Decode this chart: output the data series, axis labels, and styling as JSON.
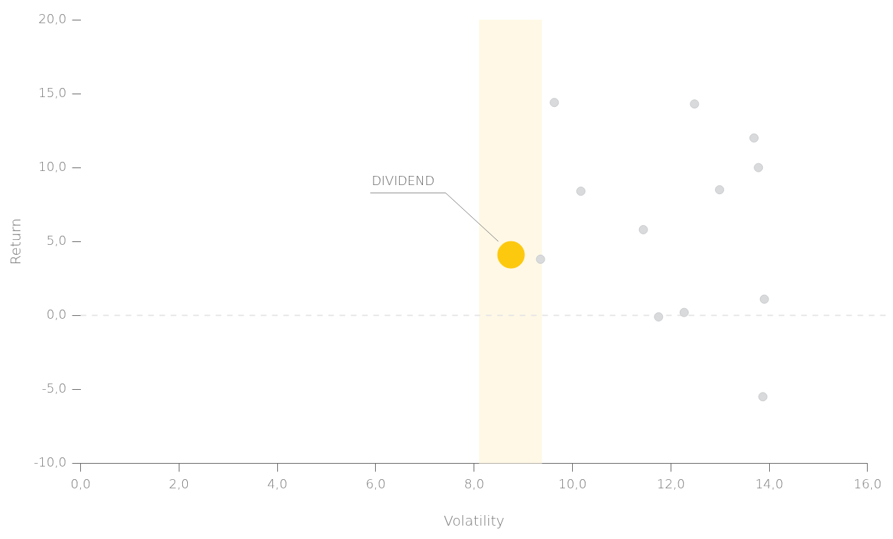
{
  "chart_data": {
    "type": "scatter",
    "xlabel": "Volatility",
    "ylabel": "Return",
    "xlim": [
      0,
      16
    ],
    "xticks": [
      {
        "value": 0,
        "label": "0,0"
      },
      {
        "value": 2,
        "label": "2,0"
      },
      {
        "value": 4,
        "label": "4,0"
      },
      {
        "value": 6,
        "label": "6,0"
      },
      {
        "value": 8,
        "label": "8,0"
      },
      {
        "value": 10,
        "label": "10,0"
      },
      {
        "value": 12,
        "label": "12,0"
      },
      {
        "value": 14,
        "label": "14,0"
      },
      {
        "value": 16,
        "label": "16,0"
      }
    ],
    "ylim": [
      -10,
      20
    ],
    "yticks": [
      {
        "value": -10,
        "label": "-10,0"
      },
      {
        "value": -5,
        "label": "-5,0"
      },
      {
        "value": 0,
        "label": "0,0"
      },
      {
        "value": 5,
        "label": "5,0"
      },
      {
        "value": 10,
        "label": "10,0"
      },
      {
        "value": 15,
        "label": "15,0"
      },
      {
        "value": 20,
        "label": "20,0"
      }
    ],
    "grid": false,
    "legend": false,
    "marker": "circle",
    "series": [
      {
        "color": "#d9dadc",
        "x": [
          9.63,
          12.48,
          13.69,
          13.78,
          10.17,
          12.99,
          11.44,
          9.35,
          13.9,
          12.27,
          11.75,
          13.87
        ],
        "values": [
          14.4,
          14.3,
          12,
          10,
          8.4,
          8.5,
          5.8,
          3.8,
          1.1,
          0.2,
          -0.1,
          -5.5
        ]
      },
      {
        "color": "#fdc90f",
        "x": [
          8.75
        ],
        "values": [
          4.1
        ]
      }
    ],
    "ref_lines": [
      {
        "axis": "y",
        "value": 0,
        "color": "#e6e6e6",
        "line_style": "dashed"
      }
    ],
    "bands": [
      {
        "axis": "x",
        "from": 8.1,
        "to": 9.38,
        "color": "#fff8e6"
      }
    ],
    "annotations": [
      "DIVIDEND"
    ]
  }
}
